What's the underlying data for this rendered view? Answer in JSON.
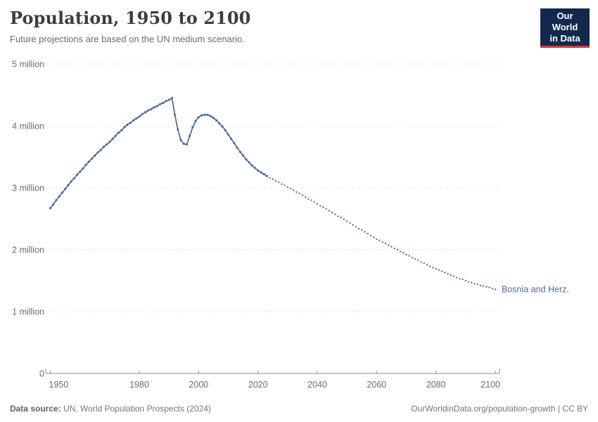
{
  "header": {
    "title": "Population, 1950 to 2100",
    "subtitle": "Future projections are based on the UN medium scenario.",
    "logo": {
      "line1": "Our World",
      "line2": "in Data",
      "bg_color": "#12294d",
      "accent_color": "#d93a35"
    }
  },
  "footer": {
    "source_label": "Data source:",
    "source_value": " UN, World Population Prospects (2024)",
    "link": "OurWorldinData.org/population-growth | CC BY"
  },
  "chart_data": {
    "type": "line",
    "title": "Population, 1950 to 2100",
    "entity_label": "Bosnia and Herz.",
    "unit": "millions of people",
    "line_color": "#4C6A9C",
    "grid_color": "#e0e0e0",
    "axis_color": "#8f8f8f",
    "tick_text_color": "#6b6b6b",
    "grid": "horizontal dashed",
    "legend_position": "end-of-line label",
    "xlabel": "",
    "ylabel": "",
    "ylim_millions": [
      0,
      5
    ],
    "x_domain": [
      1948.5,
      2102
    ],
    "yticks": [
      {
        "value": 0,
        "label": "0"
      },
      {
        "value": 1,
        "label": "1 million"
      },
      {
        "value": 2,
        "label": "2 million"
      },
      {
        "value": 3,
        "label": "3 million"
      },
      {
        "value": 4,
        "label": "4 million"
      },
      {
        "value": 5,
        "label": "5 million"
      }
    ],
    "xticks": [
      1950,
      1980,
      2000,
      2020,
      2040,
      2060,
      2080,
      2100
    ],
    "series": [
      {
        "name": "observed",
        "style": "solid",
        "points": [
          [
            1950,
            2.67
          ],
          [
            1951,
            2.73
          ],
          [
            1952,
            2.8
          ],
          [
            1953,
            2.86
          ],
          [
            1954,
            2.92
          ],
          [
            1955,
            2.98
          ],
          [
            1956,
            3.04
          ],
          [
            1957,
            3.1
          ],
          [
            1958,
            3.15
          ],
          [
            1959,
            3.21
          ],
          [
            1960,
            3.26
          ],
          [
            1961,
            3.31
          ],
          [
            1962,
            3.37
          ],
          [
            1963,
            3.42
          ],
          [
            1964,
            3.47
          ],
          [
            1965,
            3.52
          ],
          [
            1966,
            3.57
          ],
          [
            1967,
            3.61
          ],
          [
            1968,
            3.66
          ],
          [
            1969,
            3.7
          ],
          [
            1970,
            3.74
          ],
          [
            1971,
            3.79
          ],
          [
            1972,
            3.84
          ],
          [
            1973,
            3.89
          ],
          [
            1974,
            3.93
          ],
          [
            1975,
            3.98
          ],
          [
            1976,
            4.02
          ],
          [
            1977,
            4.05
          ],
          [
            1978,
            4.09
          ],
          [
            1979,
            4.12
          ],
          [
            1980,
            4.15
          ],
          [
            1981,
            4.19
          ],
          [
            1982,
            4.22
          ],
          [
            1983,
            4.25
          ],
          [
            1984,
            4.27
          ],
          [
            1985,
            4.3
          ],
          [
            1986,
            4.32
          ],
          [
            1987,
            4.35
          ],
          [
            1988,
            4.37
          ],
          [
            1989,
            4.4
          ],
          [
            1990,
            4.42
          ],
          [
            1991,
            4.45
          ],
          [
            1992,
            4.18
          ],
          [
            1993,
            3.94
          ],
          [
            1994,
            3.77
          ],
          [
            1995,
            3.71
          ],
          [
            1996,
            3.7
          ],
          [
            1997,
            3.84
          ],
          [
            1998,
            3.98
          ],
          [
            1999,
            4.08
          ],
          [
            2000,
            4.14
          ],
          [
            2001,
            4.17
          ],
          [
            2002,
            4.18
          ],
          [
            2003,
            4.18
          ],
          [
            2004,
            4.16
          ],
          [
            2005,
            4.13
          ],
          [
            2006,
            4.09
          ],
          [
            2007,
            4.04
          ],
          [
            2008,
            3.99
          ],
          [
            2009,
            3.93
          ],
          [
            2010,
            3.86
          ],
          [
            2011,
            3.79
          ],
          [
            2012,
            3.72
          ],
          [
            2013,
            3.65
          ],
          [
            2014,
            3.58
          ],
          [
            2015,
            3.52
          ],
          [
            2016,
            3.46
          ],
          [
            2017,
            3.41
          ],
          [
            2018,
            3.36
          ],
          [
            2019,
            3.32
          ],
          [
            2020,
            3.28
          ],
          [
            2021,
            3.25
          ],
          [
            2022,
            3.22
          ],
          [
            2023,
            3.19
          ]
        ]
      },
      {
        "name": "UN medium scenario projection",
        "style": "dotted",
        "points": [
          [
            2024,
            3.16
          ],
          [
            2025,
            3.14
          ],
          [
            2026,
            3.11
          ],
          [
            2027,
            3.09
          ],
          [
            2028,
            3.06
          ],
          [
            2029,
            3.04
          ],
          [
            2030,
            3.01
          ],
          [
            2031,
            2.99
          ],
          [
            2032,
            2.96
          ],
          [
            2033,
            2.93
          ],
          [
            2034,
            2.91
          ],
          [
            2035,
            2.88
          ],
          [
            2036,
            2.85
          ],
          [
            2037,
            2.82
          ],
          [
            2038,
            2.8
          ],
          [
            2039,
            2.77
          ],
          [
            2040,
            2.74
          ],
          [
            2041,
            2.71
          ],
          [
            2042,
            2.69
          ],
          [
            2043,
            2.66
          ],
          [
            2044,
            2.63
          ],
          [
            2045,
            2.6
          ],
          [
            2046,
            2.57
          ],
          [
            2047,
            2.54
          ],
          [
            2048,
            2.52
          ],
          [
            2049,
            2.49
          ],
          [
            2050,
            2.46
          ],
          [
            2051,
            2.43
          ],
          [
            2052,
            2.4
          ],
          [
            2053,
            2.37
          ],
          [
            2054,
            2.34
          ],
          [
            2055,
            2.32
          ],
          [
            2056,
            2.29
          ],
          [
            2057,
            2.26
          ],
          [
            2058,
            2.23
          ],
          [
            2059,
            2.2
          ],
          [
            2060,
            2.17
          ],
          [
            2061,
            2.15
          ],
          [
            2062,
            2.12
          ],
          [
            2063,
            2.1
          ],
          [
            2064,
            2.07
          ],
          [
            2065,
            2.05
          ],
          [
            2066,
            2.02
          ],
          [
            2067,
            2.0
          ],
          [
            2068,
            1.97
          ],
          [
            2069,
            1.95
          ],
          [
            2070,
            1.92
          ],
          [
            2071,
            1.9
          ],
          [
            2072,
            1.87
          ],
          [
            2073,
            1.85
          ],
          [
            2074,
            1.83
          ],
          [
            2075,
            1.8
          ],
          [
            2076,
            1.78
          ],
          [
            2077,
            1.76
          ],
          [
            2078,
            1.73
          ],
          [
            2079,
            1.71
          ],
          [
            2080,
            1.69
          ],
          [
            2081,
            1.67
          ],
          [
            2082,
            1.65
          ],
          [
            2083,
            1.63
          ],
          [
            2084,
            1.61
          ],
          [
            2085,
            1.59
          ],
          [
            2086,
            1.57
          ],
          [
            2087,
            1.55
          ],
          [
            2088,
            1.53
          ],
          [
            2089,
            1.52
          ],
          [
            2090,
            1.5
          ],
          [
            2091,
            1.48
          ],
          [
            2092,
            1.47
          ],
          [
            2093,
            1.45
          ],
          [
            2094,
            1.44
          ],
          [
            2095,
            1.42
          ],
          [
            2096,
            1.41
          ],
          [
            2097,
            1.4
          ],
          [
            2098,
            1.39
          ],
          [
            2099,
            1.37
          ],
          [
            2100,
            1.36
          ]
        ]
      }
    ]
  }
}
